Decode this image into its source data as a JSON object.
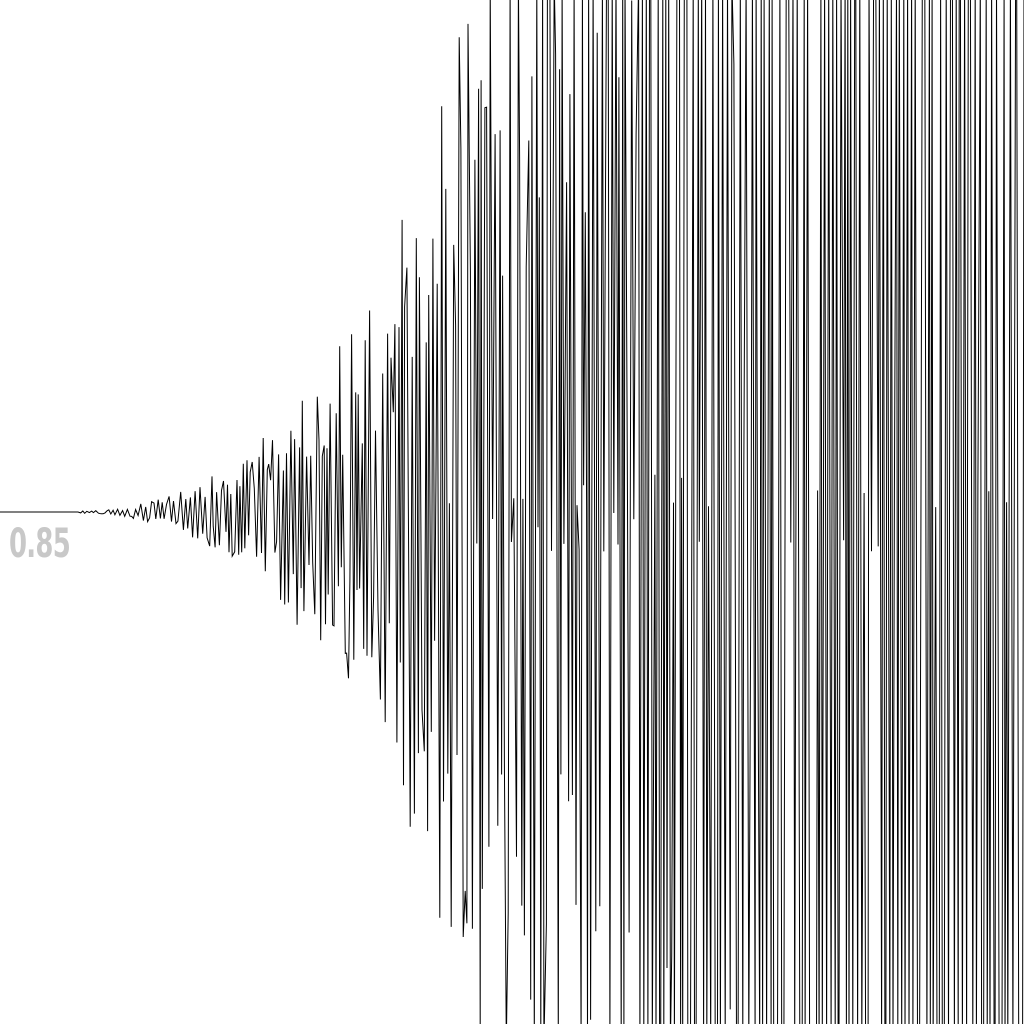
{
  "visualization": {
    "parameter_label": "0.85",
    "colors": {
      "background": "#ffffff",
      "trace": "#000000",
      "label": "#c8c8c8"
    }
  }
}
